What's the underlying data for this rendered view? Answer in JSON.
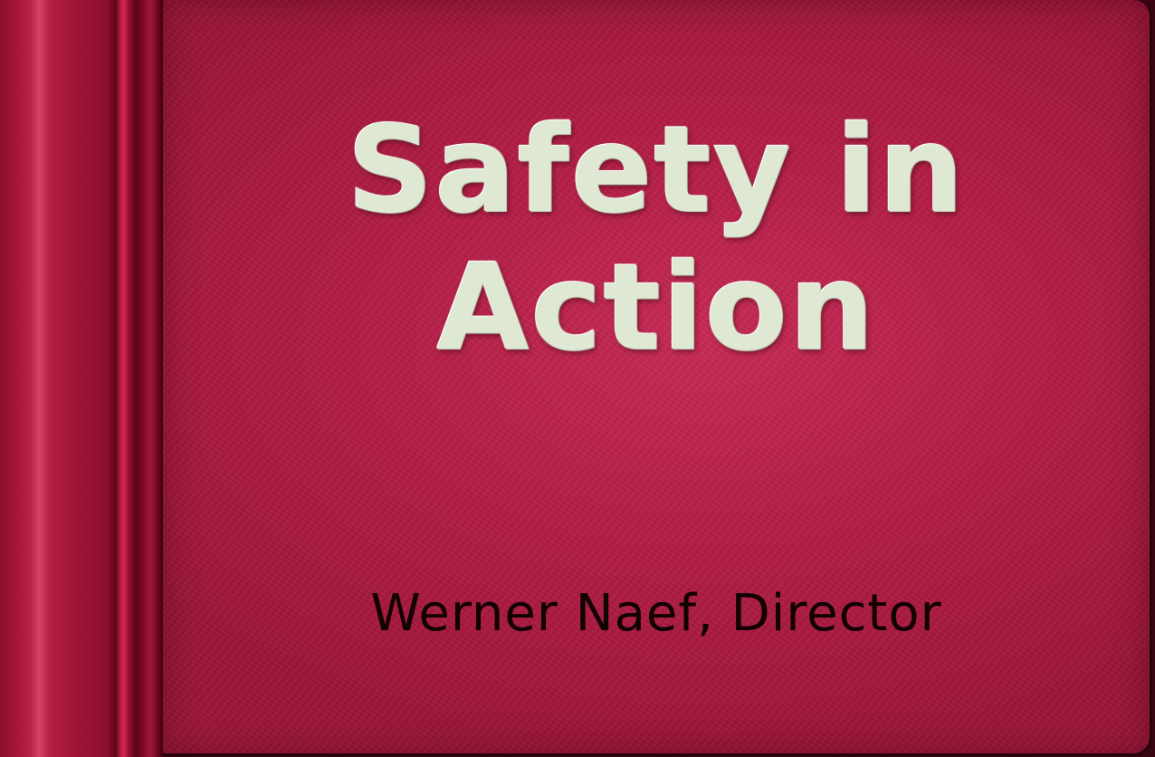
{
  "cover": {
    "title_line1": "Safety in",
    "title_line2": "Action",
    "author": "Werner Naef, Director"
  },
  "colors": {
    "cover": "#b41e46",
    "spine": "#8a0f2c",
    "title_text": "#dfe8d2",
    "author_text": "#120204"
  }
}
